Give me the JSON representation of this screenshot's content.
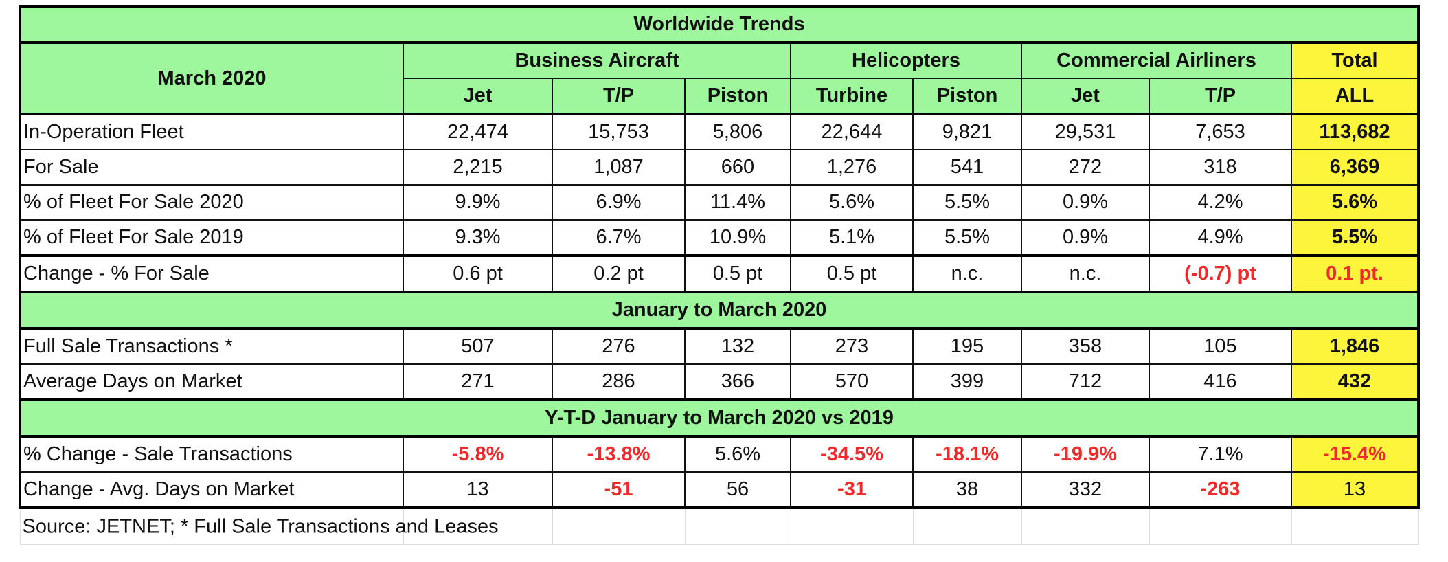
{
  "title": "Worldwide Trends",
  "period_label": "March 2020",
  "groups": [
    {
      "label": "Business Aircraft",
      "span": 3
    },
    {
      "label": "Helicopters",
      "span": 2
    },
    {
      "label": "Commercial Airliners",
      "span": 2
    },
    {
      "label": "Total",
      "span": 1
    }
  ],
  "subheaders": [
    "Jet",
    "T/P",
    "Piston",
    "Turbine",
    "Piston",
    "Jet",
    "T/P",
    "ALL"
  ],
  "colors": {
    "header_green": "#9ef79c",
    "total_yellow": "#fdf53c",
    "negative_red": "#ee2a2a"
  },
  "sections": [
    {
      "header": null,
      "rows": [
        {
          "label": "In-Operation Fleet",
          "values": [
            "22,474",
            "15,753",
            "5,806",
            "22,644",
            "9,821",
            "29,531",
            "7,653",
            "113,682"
          ],
          "red": []
        },
        {
          "label": "For Sale",
          "values": [
            "2,215",
            "1,087",
            "660",
            "1,276",
            "541",
            "272",
            "318",
            "6,369"
          ],
          "red": []
        },
        {
          "label": "% of Fleet For Sale 2020",
          "values": [
            "9.9%",
            "6.9%",
            "11.4%",
            "5.6%",
            "5.5%",
            "0.9%",
            "4.2%",
            "5.6%"
          ],
          "red": []
        },
        {
          "label": "% of Fleet For Sale 2019",
          "values": [
            "9.3%",
            "6.7%",
            "10.9%",
            "5.1%",
            "5.5%",
            "0.9%",
            "4.9%",
            "5.5%"
          ],
          "red": []
        },
        {
          "label": "Change - % For Sale",
          "values": [
            "0.6 pt",
            "0.2 pt",
            "0.5 pt",
            "0.5 pt",
            "n.c.",
            "n.c.",
            "(-0.7) pt",
            "0.1 pt."
          ],
          "red": [
            6,
            7
          ]
        }
      ],
      "total_bold": true
    },
    {
      "header": "January to March 2020",
      "rows": [
        {
          "label": "Full Sale Transactions *",
          "values": [
            "507",
            "276",
            "132",
            "273",
            "195",
            "358",
            "105",
            "1,846"
          ],
          "red": []
        },
        {
          "label": "Average Days on Market",
          "values": [
            "271",
            "286",
            "366",
            "570",
            "399",
            "712",
            "416",
            "432"
          ],
          "red": []
        }
      ],
      "total_bold": true
    },
    {
      "header": "Y-T-D January to March 2020 vs 2019",
      "rows": [
        {
          "label": "% Change  - Sale Transactions",
          "values": [
            "-5.8%",
            "-13.8%",
            "5.6%",
            "-34.5%",
            "-18.1%",
            "-19.9%",
            "7.1%",
            "-15.4%"
          ],
          "red": [
            0,
            1,
            3,
            4,
            5,
            7
          ]
        },
        {
          "label": "Change -  Avg. Days on Market",
          "values": [
            "13",
            "-51",
            "56",
            "-31",
            "38",
            "332",
            "-263",
            "13"
          ],
          "red": [
            1,
            3,
            6
          ]
        }
      ],
      "total_bold": false
    }
  ],
  "source": "Source: JETNET; * Full Sale Transactions and Leases"
}
